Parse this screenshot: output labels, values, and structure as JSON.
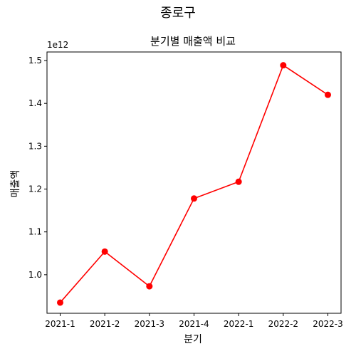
{
  "chart_data": {
    "type": "line",
    "suptitle": "종로구",
    "title": "분기별 매출액 비교",
    "xlabel": "분기",
    "ylabel": "매출액",
    "y_offset_label": "1e12",
    "categories": [
      "2021-1",
      "2021-2",
      "2021-3",
      "2021-4",
      "2022-1",
      "2022-2",
      "2022-3"
    ],
    "values": [
      935000000000.0,
      1054000000000.0,
      973000000000.0,
      1178000000000.0,
      1217000000000.0,
      1489000000000.0,
      1420000000000.0
    ],
    "ylim": [
      910000000000.0,
      1520000000000.0
    ],
    "yticks": [
      1000000000000.0,
      1100000000000.0,
      1200000000000.0,
      1300000000000.0,
      1400000000000.0,
      1500000000000.0
    ],
    "ytick_labels": [
      "1.0",
      "1.1",
      "1.2",
      "1.3",
      "1.4",
      "1.5"
    ],
    "color": "#ff0000",
    "marker": "circle",
    "grid": false,
    "legend": "none"
  }
}
